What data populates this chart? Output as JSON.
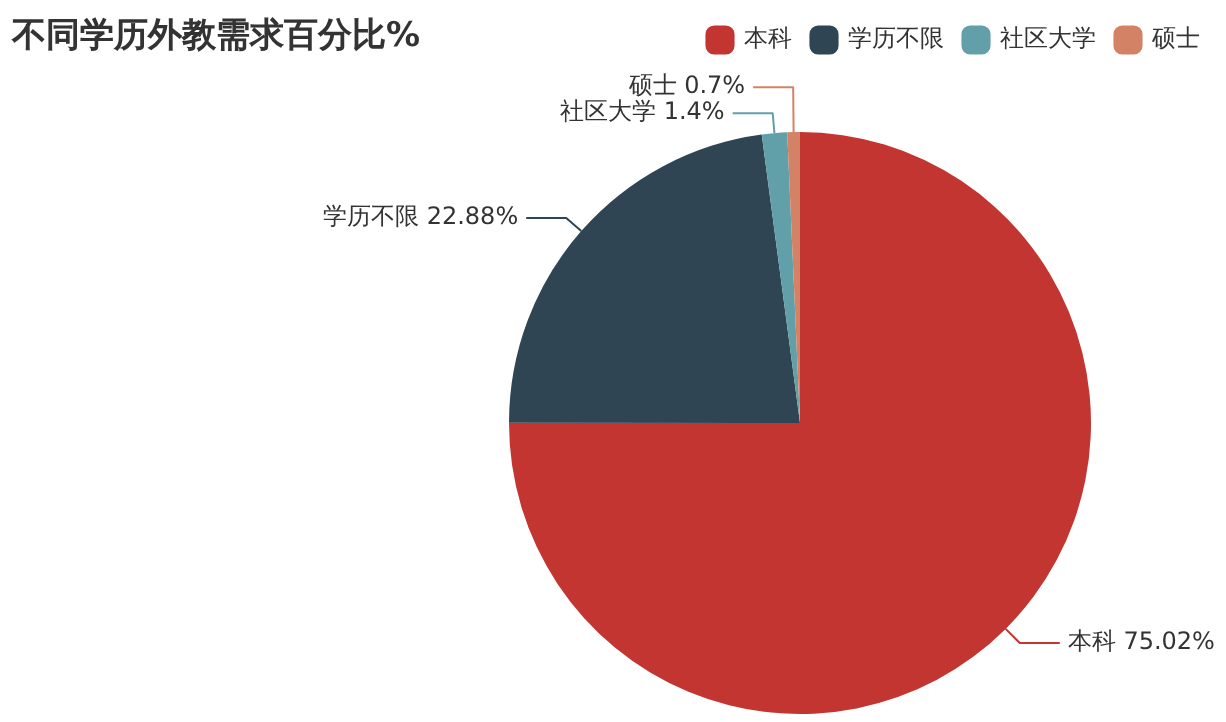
{
  "chart_data": {
    "type": "pie",
    "title": "不同学历外教需求百分比%",
    "categories": [
      "本科",
      "学历不限",
      "社区大学",
      "硕士"
    ],
    "values": [
      75.02,
      22.88,
      1.4,
      0.7
    ],
    "value_labels": [
      "75.02%",
      "22.88%",
      "1.4%",
      "0.7%"
    ],
    "colors": [
      "#c23531",
      "#2f4554",
      "#61a0a8",
      "#d48265"
    ],
    "legend": "top right"
  }
}
